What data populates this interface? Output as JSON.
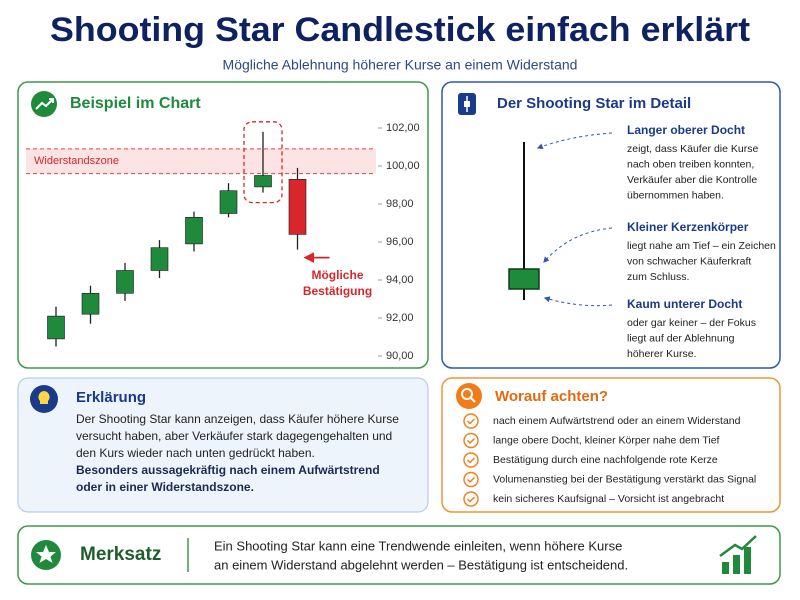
{
  "header": {
    "title": "Shooting Star Candlestick einfach erklärt",
    "subtitle": "Mögliche Ablehnung höherer Kurse an einem Widerstand"
  },
  "chart_panel": {
    "title": "Beispiel im Chart"
  },
  "chart_data": {
    "type": "candlestick",
    "categories": [
      null,
      null,
      null,
      null,
      null,
      null,
      null,
      null
    ],
    "open": [
      90.9,
      92.2,
      93.3,
      94.5,
      95.9,
      97.5,
      98.9,
      99.3
    ],
    "high": [
      92.6,
      93.7,
      94.9,
      96.1,
      97.6,
      99.1,
      101.8,
      99.9
    ],
    "low": [
      90.5,
      91.7,
      92.9,
      94.1,
      95.5,
      97.3,
      98.6,
      95.6
    ],
    "close": [
      92.1,
      93.3,
      94.5,
      95.7,
      97.3,
      98.7,
      99.5,
      96.4
    ],
    "up_color": "#1f8a3b",
    "down_color": "#d9262b",
    "ylim": [
      90,
      102
    ],
    "yticks": [
      {
        "value": 90,
        "label": "90,00"
      },
      {
        "value": 92,
        "label": "92,00"
      },
      {
        "value": 94,
        "label": "94,00"
      },
      {
        "value": 96,
        "label": "96,00"
      },
      {
        "value": 98,
        "label": "98,00"
      },
      {
        "value": 100,
        "label": "100,00"
      },
      {
        "value": 102,
        "label": "102,00"
      }
    ],
    "zone": {
      "label": "Widerstandszone",
      "range": [
        99.6,
        100.9
      ],
      "color": "#e8414a"
    },
    "confirmation_label": [
      "Mögliche",
      "Bestätigung"
    ]
  },
  "detail_panel": {
    "title": "Der Shooting Star im Detail",
    "items": [
      {
        "heading": "Langer oberer Docht",
        "lines": [
          "zeigt, dass Käufer die Kurse",
          "nach oben treiben konnten,",
          "Verkäufer aber die Kontrolle",
          "übernommen haben."
        ]
      },
      {
        "heading": "Kleiner Kerzenkörper",
        "lines": [
          "liegt nahe am Tief – ein Zeichen",
          "von schwacher Käuferkraft",
          "zum Schluss."
        ]
      },
      {
        "heading": "Kaum unterer Docht",
        "lines": [
          "oder gar keiner – der Fokus",
          "liegt auf der Ablehnung",
          "höherer Kurse."
        ]
      }
    ]
  },
  "explanation": {
    "title": "Erklärung",
    "lines": [
      "Der Shooting Star kann anzeigen, dass Käufer höhere Kurse",
      "versucht haben, aber Verkäufer stark dagegengehalten und",
      "den Kurs wieder nach unten gedrückt haben."
    ],
    "bold_lines": [
      "Besonders aussagekräftig nach einem Aufwärtstrend",
      "oder in einer Widerstandszone."
    ]
  },
  "checklist": {
    "title": "Worauf achten?",
    "items": [
      "nach einem Aufwärtstrend oder an einem Widerstand",
      "lange obere Docht, kleiner Körper nahe dem Tief",
      "Bestätigung durch eine nachfolgende rote Kerze",
      "Volumenanstieg bei der Bestätigung verstärkt das Signal",
      "kein sicheres Kaufsignal – Vorsicht ist angebracht"
    ]
  },
  "summary": {
    "title": "Merksatz",
    "lines": [
      "Ein Shooting Star kann eine Trendwende einleiten, wenn höhere Kurse",
      "an einem Widerstand abgelehnt werden – Bestätigung ist entscheidend."
    ]
  }
}
